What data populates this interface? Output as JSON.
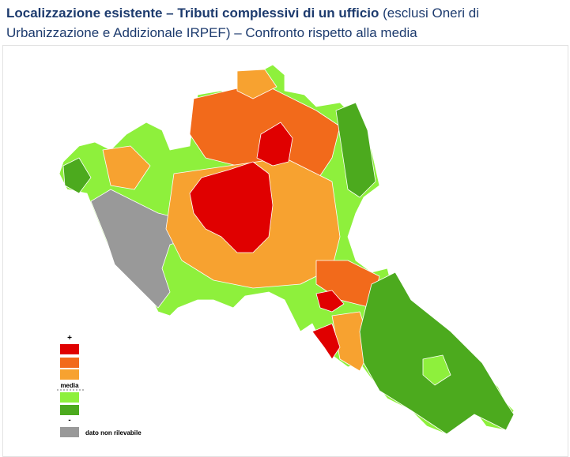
{
  "header": {
    "title_bold": "Localizzazione esistente – Tributi complessivi di un ufficio",
    "title_rest": "(esclusi Oneri di Urbanizzazione e Addizionale IRPEF) – Confronto rispetto alla media"
  },
  "legend": {
    "top_label": "+",
    "mid_label": "media",
    "bottom_label": "-",
    "na_label": "dato non rilevabile"
  }
}
